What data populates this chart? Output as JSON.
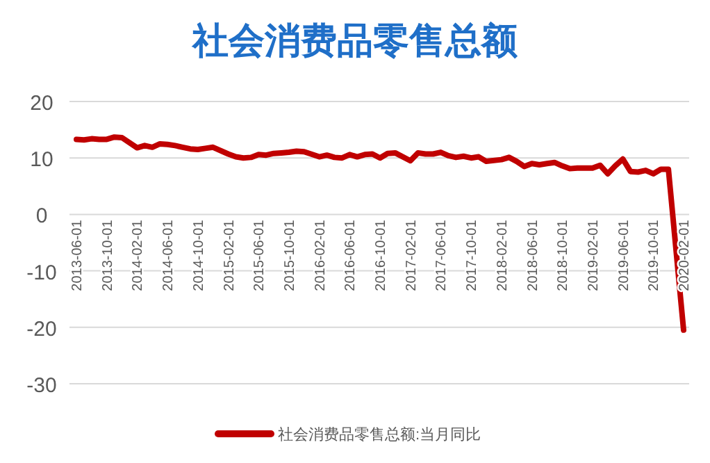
{
  "chart_data": {
    "type": "line",
    "title": "社会消费品零售总额",
    "x": [
      "2013-06",
      "2013-07",
      "2013-08",
      "2013-09",
      "2013-10",
      "2013-11",
      "2013-12",
      "2014-02",
      "2014-03",
      "2014-04",
      "2014-05",
      "2014-06",
      "2014-07",
      "2014-08",
      "2014-09",
      "2014-10",
      "2014-11",
      "2014-12",
      "2015-02",
      "2015-03",
      "2015-04",
      "2015-05",
      "2015-06",
      "2015-07",
      "2015-08",
      "2015-09",
      "2015-10",
      "2015-11",
      "2015-12",
      "2016-02",
      "2016-03",
      "2016-04",
      "2016-05",
      "2016-06",
      "2016-07",
      "2016-08",
      "2016-09",
      "2016-10",
      "2016-11",
      "2016-12",
      "2017-02",
      "2017-03",
      "2017-04",
      "2017-05",
      "2017-06",
      "2017-07",
      "2017-08",
      "2017-09",
      "2017-10",
      "2017-11",
      "2017-12",
      "2018-02",
      "2018-03",
      "2018-04",
      "2018-05",
      "2018-06",
      "2018-07",
      "2018-08",
      "2018-09",
      "2018-10",
      "2018-11",
      "2018-12",
      "2019-02",
      "2019-03",
      "2019-04",
      "2019-05",
      "2019-06",
      "2019-07",
      "2019-08",
      "2019-09",
      "2019-10",
      "2019-11",
      "2019-12",
      "2020-02"
    ],
    "series": [
      {
        "name": "社会消费品零售总额:当月同比",
        "color": "#c00000",
        "values": [
          13.3,
          13.2,
          13.4,
          13.3,
          13.3,
          13.7,
          13.6,
          11.8,
          12.2,
          11.9,
          12.5,
          12.4,
          12.2,
          11.9,
          11.6,
          11.5,
          11.7,
          11.9,
          10.7,
          10.2,
          10.0,
          10.1,
          10.6,
          10.5,
          10.8,
          10.9,
          11.0,
          11.2,
          11.1,
          10.2,
          10.5,
          10.1,
          10.0,
          10.6,
          10.2,
          10.6,
          10.7,
          10.0,
          10.8,
          10.9,
          9.5,
          10.9,
          10.7,
          10.7,
          11.0,
          10.4,
          10.1,
          10.3,
          10.0,
          10.2,
          9.4,
          9.7,
          10.1,
          9.4,
          8.5,
          9.0,
          8.8,
          9.0,
          9.2,
          8.6,
          8.1,
          8.2,
          8.2,
          8.7,
          7.2,
          8.6,
          9.8,
          7.6,
          7.5,
          7.8,
          7.2,
          8.0,
          8.0,
          -20.5
        ]
      }
    ],
    "xlim": [
      "2013-06",
      "2020-02"
    ],
    "xticks": [
      "2013-06-01",
      "2013-10-01",
      "2014-02-01",
      "2014-06-01",
      "2014-10-01",
      "2015-02-01",
      "2015-06-01",
      "2015-10-01",
      "2016-02-01",
      "2016-06-01",
      "2016-10-01",
      "2017-02-01",
      "2017-06-01",
      "2017-10-01",
      "2018-02-01",
      "2018-06-01",
      "2018-10-01",
      "2019-02-01",
      "2019-06-01",
      "2019-10-01",
      "2020-02-01"
    ],
    "ylim": [
      -30,
      20
    ],
    "yticks": [
      -30,
      -20,
      -10,
      0,
      10,
      20
    ],
    "grid": "y",
    "legend": "bottom",
    "marker": "none",
    "line_style": "solid"
  }
}
